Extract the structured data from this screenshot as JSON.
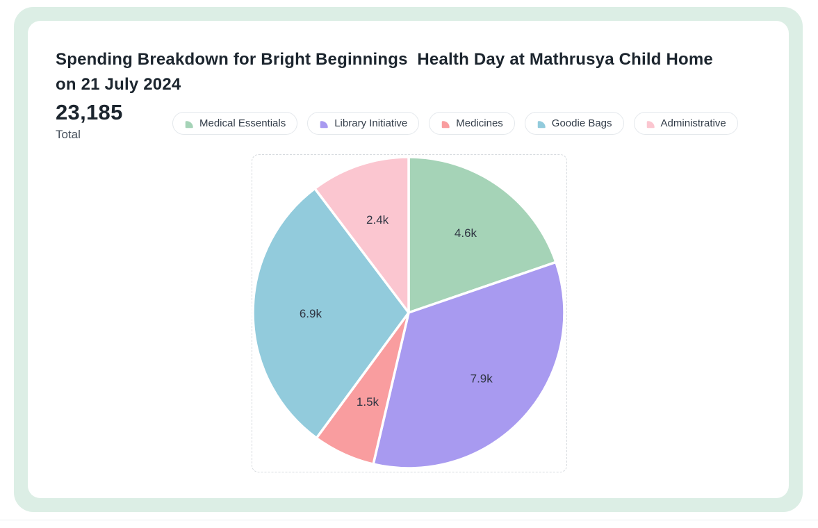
{
  "header": {
    "title": "Spending Breakdown for Bright Beginnings  Health Day at Mathrusya Child Home\non 21 July 2024",
    "total_value": "23,185",
    "total_label": "Total"
  },
  "chart_data": {
    "type": "pie",
    "title": "Spending Breakdown for Bright Beginnings Health Day at Mathrusya Child Home on 21 July 2024",
    "total": 23185,
    "total_display": "23,185",
    "start_angle_deg": 0,
    "direction": "clockwise",
    "legend_position": "top",
    "slice_border_color": "#ffffff",
    "label_color": "#2f3542",
    "series": [
      {
        "name": "Medical Essentials",
        "value": 4600,
        "label": "4.6k",
        "color": "#a5d3b7"
      },
      {
        "name": "Library Initiative",
        "value": 7900,
        "label": "7.9k",
        "color": "#a89af0"
      },
      {
        "name": "Medicines",
        "value": 1500,
        "label": "1.5k",
        "color": "#f99d9f"
      },
      {
        "name": "Goodie Bags",
        "value": 6900,
        "label": "6.9k",
        "color": "#92cbdc"
      },
      {
        "name": "Administrative",
        "value": 2400,
        "label": "2.4k",
        "color": "#fbc6d0"
      }
    ],
    "theme": {
      "frame_color": "#dceee5",
      "card_color": "#ffffff",
      "title_color": "#1c252e",
      "dashed_border_color": "#d6dade"
    }
  }
}
